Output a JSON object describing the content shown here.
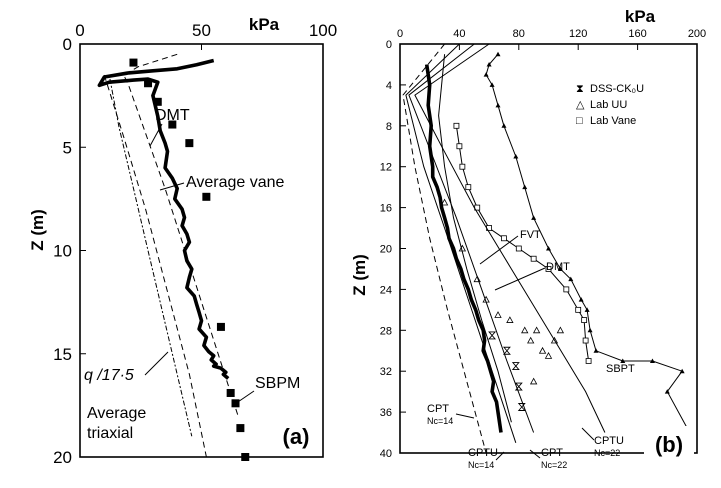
{
  "chart_data": [
    {
      "type": "line",
      "panel_label": "(a)",
      "unit": "kPa",
      "ylabel": "Z (m)",
      "xlim": [
        0,
        100
      ],
      "ylim": [
        0,
        20
      ],
      "x_ticks": [
        "0",
        "50",
        "100"
      ],
      "y_ticks": [
        "0",
        "5",
        "10",
        "15",
        "20"
      ],
      "annotations": [
        "DMT",
        "Average vane",
        "q /17·5",
        "SBPM",
        "Average",
        "triaxial"
      ],
      "series": [
        {
          "name": "DMT",
          "style": "thick-solid",
          "x": [
            55,
            48,
            40,
            30,
            20,
            10,
            8,
            12,
            22,
            28,
            32,
            30,
            32,
            33,
            35,
            36,
            35,
            38,
            40,
            39,
            42,
            43,
            42,
            44,
            45,
            43,
            44,
            46,
            45,
            44,
            47,
            48,
            49,
            50,
            49,
            52,
            51,
            53,
            55,
            54,
            56,
            55,
            58,
            60,
            59,
            61
          ],
          "y": [
            0.8,
            1.0,
            1.2,
            1.3,
            1.4,
            1.6,
            2.0,
            1.85,
            1.75,
            1.7,
            1.85,
            2.5,
            3.5,
            4.2,
            4.8,
            5.2,
            6.0,
            6.5,
            7.0,
            7.5,
            8.0,
            8.4,
            8.8,
            9.2,
            9.6,
            10.0,
            10.5,
            10.9,
            11.3,
            11.8,
            12.2,
            12.6,
            13.0,
            13.4,
            13.8,
            14.2,
            14.6,
            14.9,
            15.1,
            15.3,
            15.5,
            15.6,
            15.7,
            15.9,
            16.0,
            16.2
          ]
        },
        {
          "name": "Average vane",
          "style": "dashed",
          "x": [
            40,
            32,
            24,
            18,
            20,
            35,
            50,
            65
          ],
          "y": [
            0.5,
            0.8,
            1.1,
            1.5,
            2.0,
            7.0,
            12.5,
            18.0
          ]
        },
        {
          "name": "q /17·5",
          "style": "dash-dot",
          "x": [
            12,
            16,
            22,
            28,
            34,
            40,
            46
          ],
          "y": [
            1.5,
            4.0,
            7.0,
            10.0,
            13.0,
            16.0,
            19.0
          ]
        },
        {
          "name": "Average triaxial",
          "style": "dashed",
          "x": [
            10,
            18,
            27,
            36,
            45,
            52
          ],
          "y": [
            1.5,
            4.5,
            8.0,
            12.0,
            16.0,
            20.0
          ]
        },
        {
          "name": "SBPM",
          "style": "square-markers",
          "x": [
            22,
            28,
            32,
            38,
            45,
            52,
            58,
            62,
            64,
            66,
            68
          ],
          "y": [
            0.9,
            1.9,
            2.8,
            3.9,
            4.8,
            7.4,
            13.7,
            16.9,
            17.4,
            18.6,
            20.0
          ]
        }
      ]
    },
    {
      "type": "line",
      "panel_label": "(b)",
      "unit": "kPa",
      "ylabel": "Z (m)",
      "xlim": [
        0,
        200
      ],
      "ylim": [
        0,
        40
      ],
      "x_ticks": [
        "0",
        "40",
        "80",
        "120",
        "160",
        "200"
      ],
      "y_ticks": [
        "0",
        "4",
        "8",
        "12",
        "16",
        "20",
        "24",
        "28",
        "32",
        "36",
        "40"
      ],
      "legend": [
        "DSS-CK₀U",
        "Lab UU",
        "Lab Vane"
      ],
      "annotations": [
        "FVT",
        "DMT",
        "SBPT",
        "CPT",
        "Nc=14",
        "CPTU",
        "Nc=14",
        "CPT",
        "Nc=22",
        "CPTU",
        "Nc=22"
      ],
      "series": [
        {
          "name": "DMT",
          "style": "thick-solid",
          "x": [
            18,
            20,
            19,
            21,
            20,
            22,
            22,
            25,
            27,
            28,
            30,
            32,
            33,
            36,
            38,
            41,
            43,
            46,
            48,
            51,
            53,
            56,
            57,
            56,
            59,
            61,
            63,
            62,
            65,
            66,
            67,
            68
          ],
          "y": [
            2,
            4,
            6,
            8,
            10,
            12,
            13,
            14,
            15,
            16,
            17,
            18,
            19,
            20,
            21,
            22,
            23,
            24,
            25,
            26,
            27,
            28,
            29,
            30,
            31,
            32,
            33,
            34,
            35,
            36,
            37,
            38
          ]
        },
        {
          "name": "FVT",
          "style": "thin-solid",
          "x": [
            30,
            28,
            26,
            30,
            36,
            45,
            55,
            66,
            75
          ],
          "y": [
            1,
            4,
            7,
            12,
            17,
            22,
            27,
            32,
            37
          ]
        },
        {
          "name": "SBPT",
          "style": "thin-solid-triangles",
          "x": [
            66,
            60,
            58,
            62,
            66,
            70,
            78,
            84,
            90,
            100,
            108,
            115,
            122,
            126,
            128,
            132,
            150,
            170,
            190,
            180,
            195
          ],
          "y": [
            1,
            2,
            3,
            4,
            6,
            8,
            11,
            14,
            17,
            20,
            22,
            23,
            25,
            26,
            28,
            30,
            31,
            31,
            32,
            34,
            38
          ]
        },
        {
          "name": "Lab Vane",
          "style": "thin-solid-squares",
          "x": [
            38,
            40,
            42,
            46,
            52,
            60,
            70,
            80,
            90,
            100,
            112,
            120,
            124,
            125,
            127
          ],
          "y": [
            8,
            10,
            12,
            14,
            16,
            18,
            19,
            20,
            21,
            22,
            24,
            26,
            27,
            29,
            31
          ]
        },
        {
          "name": "CPTU Nc=22",
          "style": "thin-solid",
          "x": [
            60,
            10,
            28,
            50,
            75,
            100,
            125,
            138
          ],
          "y": [
            0,
            5,
            10,
            16,
            22,
            28,
            34,
            38
          ]
        },
        {
          "name": "CPT Nc=22",
          "style": "thin-solid",
          "x": [
            50,
            6,
            22,
            38,
            55,
            72,
            90
          ],
          "y": [
            0,
            5,
            11,
            17,
            24,
            31,
            38
          ]
        },
        {
          "name": "CPTU Nc=14",
          "style": "thin-solid",
          "x": [
            40,
            4,
            16,
            30,
            46,
            62,
            78
          ],
          "y": [
            0,
            5,
            12,
            18,
            25,
            32,
            39
          ]
        },
        {
          "name": "CPT Nc=14",
          "style": "dashed",
          "x": [
            30,
            2,
            10,
            20,
            32,
            45,
            58
          ],
          "y": [
            0,
            5,
            12,
            19,
            26,
            33,
            40
          ]
        },
        {
          "name": "DSS-CK₀U",
          "style": "hourglass-markers",
          "x": [
            62,
            72,
            78,
            80,
            82
          ],
          "y": [
            28.5,
            30,
            31.5,
            33.5,
            35.5
          ]
        },
        {
          "name": "Lab UU",
          "style": "triangle-markers",
          "x": [
            30,
            42,
            52,
            58,
            66,
            74,
            84,
            88,
            92,
            96,
            100,
            104,
            108,
            90
          ],
          "y": [
            15.5,
            20,
            23,
            25,
            26.5,
            27,
            28,
            29,
            28,
            30,
            30.5,
            29,
            28,
            33
          ]
        }
      ]
    }
  ]
}
